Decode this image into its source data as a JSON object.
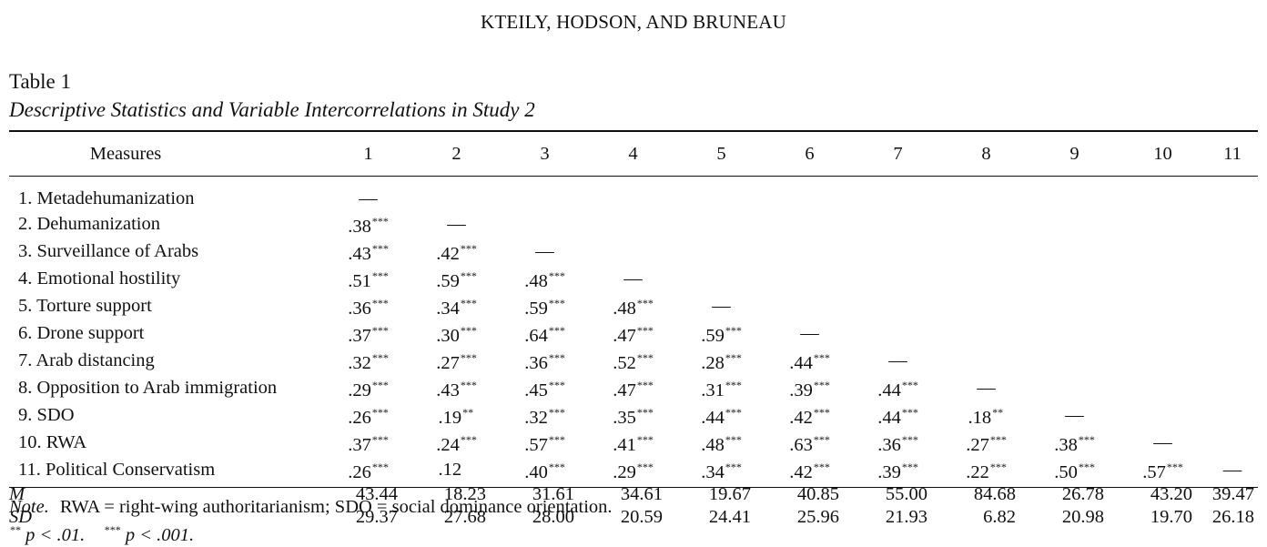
{
  "running_head": "KTEILY, HODSON, AND BRUNEAU",
  "table": {
    "label": "Table 1",
    "caption": "Descriptive Statistics and Variable Intercorrelations in Study 2",
    "header": {
      "measures": "Measures",
      "columns": [
        "1",
        "2",
        "3",
        "4",
        "5",
        "6",
        "7",
        "8",
        "9",
        "10",
        "11"
      ]
    },
    "rows": [
      {
        "label": "1. Metadehumanization",
        "cells": [
          {
            "v": "—",
            "s": ""
          },
          {
            "v": "",
            "s": ""
          },
          {
            "v": "",
            "s": ""
          },
          {
            "v": "",
            "s": ""
          },
          {
            "v": "",
            "s": ""
          },
          {
            "v": "",
            "s": ""
          },
          {
            "v": "",
            "s": ""
          },
          {
            "v": "",
            "s": ""
          },
          {
            "v": "",
            "s": ""
          },
          {
            "v": "",
            "s": ""
          },
          {
            "v": "",
            "s": ""
          }
        ]
      },
      {
        "label": "2. Dehumanization",
        "cells": [
          {
            "v": ".38",
            "s": "***"
          },
          {
            "v": "—",
            "s": ""
          },
          {
            "v": "",
            "s": ""
          },
          {
            "v": "",
            "s": ""
          },
          {
            "v": "",
            "s": ""
          },
          {
            "v": "",
            "s": ""
          },
          {
            "v": "",
            "s": ""
          },
          {
            "v": "",
            "s": ""
          },
          {
            "v": "",
            "s": ""
          },
          {
            "v": "",
            "s": ""
          },
          {
            "v": "",
            "s": ""
          }
        ]
      },
      {
        "label": "3. Surveillance of Arabs",
        "cells": [
          {
            "v": ".43",
            "s": "***"
          },
          {
            "v": ".42",
            "s": "***"
          },
          {
            "v": "—",
            "s": ""
          },
          {
            "v": "",
            "s": ""
          },
          {
            "v": "",
            "s": ""
          },
          {
            "v": "",
            "s": ""
          },
          {
            "v": "",
            "s": ""
          },
          {
            "v": "",
            "s": ""
          },
          {
            "v": "",
            "s": ""
          },
          {
            "v": "",
            "s": ""
          },
          {
            "v": "",
            "s": ""
          }
        ]
      },
      {
        "label": "4. Emotional hostility",
        "cells": [
          {
            "v": ".51",
            "s": "***"
          },
          {
            "v": ".59",
            "s": "***"
          },
          {
            "v": ".48",
            "s": "***"
          },
          {
            "v": "—",
            "s": ""
          },
          {
            "v": "",
            "s": ""
          },
          {
            "v": "",
            "s": ""
          },
          {
            "v": "",
            "s": ""
          },
          {
            "v": "",
            "s": ""
          },
          {
            "v": "",
            "s": ""
          },
          {
            "v": "",
            "s": ""
          },
          {
            "v": "",
            "s": ""
          }
        ]
      },
      {
        "label": "5. Torture support",
        "cells": [
          {
            "v": ".36",
            "s": "***"
          },
          {
            "v": ".34",
            "s": "***"
          },
          {
            "v": ".59",
            "s": "***"
          },
          {
            "v": ".48",
            "s": "***"
          },
          {
            "v": "—",
            "s": ""
          },
          {
            "v": "",
            "s": ""
          },
          {
            "v": "",
            "s": ""
          },
          {
            "v": "",
            "s": ""
          },
          {
            "v": "",
            "s": ""
          },
          {
            "v": "",
            "s": ""
          },
          {
            "v": "",
            "s": ""
          }
        ]
      },
      {
        "label": "6. Drone support",
        "cells": [
          {
            "v": ".37",
            "s": "***"
          },
          {
            "v": ".30",
            "s": "***"
          },
          {
            "v": ".64",
            "s": "***"
          },
          {
            "v": ".47",
            "s": "***"
          },
          {
            "v": ".59",
            "s": "***"
          },
          {
            "v": "—",
            "s": ""
          },
          {
            "v": "",
            "s": ""
          },
          {
            "v": "",
            "s": ""
          },
          {
            "v": "",
            "s": ""
          },
          {
            "v": "",
            "s": ""
          },
          {
            "v": "",
            "s": ""
          }
        ]
      },
      {
        "label": "7. Arab distancing",
        "cells": [
          {
            "v": ".32",
            "s": "***"
          },
          {
            "v": ".27",
            "s": "***"
          },
          {
            "v": ".36",
            "s": "***"
          },
          {
            "v": ".52",
            "s": "***"
          },
          {
            "v": ".28",
            "s": "***"
          },
          {
            "v": ".44",
            "s": "***"
          },
          {
            "v": "—",
            "s": ""
          },
          {
            "v": "",
            "s": ""
          },
          {
            "v": "",
            "s": ""
          },
          {
            "v": "",
            "s": ""
          },
          {
            "v": "",
            "s": ""
          }
        ]
      },
      {
        "label": "8. Opposition to Arab immigration",
        "cells": [
          {
            "v": ".29",
            "s": "***"
          },
          {
            "v": ".43",
            "s": "***"
          },
          {
            "v": ".45",
            "s": "***"
          },
          {
            "v": ".47",
            "s": "***"
          },
          {
            "v": ".31",
            "s": "***"
          },
          {
            "v": ".39",
            "s": "***"
          },
          {
            "v": ".44",
            "s": "***"
          },
          {
            "v": "—",
            "s": ""
          },
          {
            "v": "",
            "s": ""
          },
          {
            "v": "",
            "s": ""
          },
          {
            "v": "",
            "s": ""
          }
        ]
      },
      {
        "label": "9. SDO",
        "cells": [
          {
            "v": ".26",
            "s": "***"
          },
          {
            "v": ".19",
            "s": "**"
          },
          {
            "v": ".32",
            "s": "***"
          },
          {
            "v": ".35",
            "s": "***"
          },
          {
            "v": ".44",
            "s": "***"
          },
          {
            "v": ".42",
            "s": "***"
          },
          {
            "v": ".44",
            "s": "***"
          },
          {
            "v": ".18",
            "s": "**"
          },
          {
            "v": "—",
            "s": ""
          },
          {
            "v": "",
            "s": ""
          },
          {
            "v": "",
            "s": ""
          }
        ]
      },
      {
        "label": "10. RWA",
        "cells": [
          {
            "v": ".37",
            "s": "***"
          },
          {
            "v": ".24",
            "s": "***"
          },
          {
            "v": ".57",
            "s": "***"
          },
          {
            "v": ".41",
            "s": "***"
          },
          {
            "v": ".48",
            "s": "***"
          },
          {
            "v": ".63",
            "s": "***"
          },
          {
            "v": ".36",
            "s": "***"
          },
          {
            "v": ".27",
            "s": "***"
          },
          {
            "v": ".38",
            "s": "***"
          },
          {
            "v": "—",
            "s": ""
          },
          {
            "v": "",
            "s": ""
          }
        ]
      },
      {
        "label": "11. Political Conservatism",
        "cells": [
          {
            "v": ".26",
            "s": "***"
          },
          {
            "v": ".12",
            "s": ""
          },
          {
            "v": ".40",
            "s": "***"
          },
          {
            "v": ".29",
            "s": "***"
          },
          {
            "v": ".34",
            "s": "***"
          },
          {
            "v": ".42",
            "s": "***"
          },
          {
            "v": ".39",
            "s": "***"
          },
          {
            "v": ".22",
            "s": "***"
          },
          {
            "v": ".50",
            "s": "***"
          },
          {
            "v": ".57",
            "s": "***"
          },
          {
            "v": "—",
            "s": ""
          }
        ]
      }
    ],
    "means": {
      "label": "M",
      "values": [
        "43.44",
        "18.23",
        "31.61",
        "34.61",
        "19.67",
        "40.85",
        "55.00",
        "84.68",
        "26.78",
        "43.20",
        "39.47"
      ]
    },
    "sds": {
      "label": "SD",
      "values": [
        "29.37",
        "27.68",
        "28.00",
        "20.59",
        "24.41",
        "25.96",
        "21.93",
        "6.82",
        "20.98",
        "19.70",
        "26.18"
      ]
    }
  },
  "note": {
    "label": "Note.",
    "text": "RWA = right-wing authoritarianism; SDO = social dominance orientation.",
    "sig_1_stars": "**",
    "sig_1_text": "p < .01.",
    "sig_2_stars": "***",
    "sig_2_text": "p < .001."
  }
}
